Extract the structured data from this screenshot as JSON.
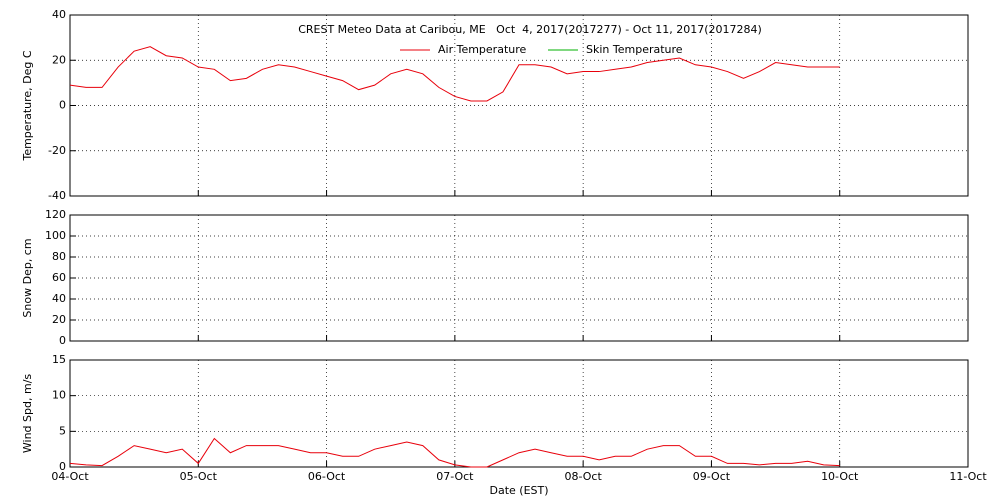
{
  "chart_data": [
    {
      "type": "line",
      "title": "CREST Meteo Data at Caribou, ME   Oct  4, 2017(2017277) - Oct 11, 2017(2017284)",
      "ylabel": "Temperature, Deg C",
      "x": [
        0,
        0.125,
        0.25,
        0.375,
        0.5,
        0.625,
        0.75,
        0.875,
        1,
        1.125,
        1.25,
        1.375,
        1.5,
        1.625,
        1.75,
        1.875,
        2,
        2.125,
        2.25,
        2.375,
        2.5,
        2.625,
        2.75,
        2.875,
        3,
        3.125,
        3.25,
        3.375,
        3.5,
        3.625,
        3.75,
        3.875,
        4,
        4.125,
        4.25,
        4.375,
        4.5,
        4.625,
        4.75,
        4.875,
        5,
        5.125,
        5.25,
        5.375,
        5.5,
        5.625,
        5.75,
        5.875,
        6
      ],
      "series": [
        {
          "name": "Air Temperature",
          "color": "#e8000b",
          "values": [
            9,
            8,
            8,
            17,
            24,
            26,
            22,
            21,
            17,
            16,
            11,
            12,
            16,
            18,
            17,
            15,
            13,
            11,
            7,
            9,
            14,
            16,
            14,
            8,
            4,
            2,
            2,
            6,
            18,
            18,
            17,
            14,
            15,
            15,
            16,
            17,
            19,
            20,
            21,
            18,
            17,
            15,
            12,
            15,
            19,
            18,
            17,
            17,
            17
          ]
        },
        {
          "name": "Skin Temperature",
          "color": "#00b000",
          "values": [
            null,
            null,
            null,
            null,
            null,
            null,
            null,
            null,
            null,
            null,
            null,
            null,
            null,
            null,
            null,
            null,
            null,
            null,
            null,
            null,
            null,
            null,
            null,
            null,
            null,
            null,
            null,
            null,
            null,
            null,
            null,
            null,
            null,
            null,
            null,
            null,
            null,
            null,
            null,
            null,
            null,
            null,
            null,
            null,
            null,
            null,
            null,
            null,
            null
          ]
        }
      ],
      "xlim": [
        0,
        7
      ],
      "xticks": [
        0,
        1,
        2,
        3,
        4,
        5,
        6,
        7
      ],
      "ylim": [
        -40,
        40
      ],
      "yticks": [
        -40,
        -20,
        0,
        20,
        40
      ],
      "grid": true,
      "legend": "top"
    },
    {
      "type": "line",
      "ylabel": "Snow Dep, cm",
      "xlim": [
        0,
        7
      ],
      "xticks": [
        0,
        1,
        2,
        3,
        4,
        5,
        6,
        7
      ],
      "ylim": [
        0,
        120
      ],
      "yticks": [
        0,
        20,
        40,
        60,
        80,
        100,
        120
      ],
      "grid": true
    },
    {
      "type": "line",
      "ylabel": "Wind Spd, m/s",
      "xlabel": "Date (EST)",
      "x": [
        0,
        0.125,
        0.25,
        0.375,
        0.5,
        0.625,
        0.75,
        0.875,
        1,
        1.125,
        1.25,
        1.375,
        1.5,
        1.625,
        1.75,
        1.875,
        2,
        2.125,
        2.25,
        2.375,
        2.5,
        2.625,
        2.75,
        2.875,
        3,
        3.125,
        3.25,
        3.375,
        3.5,
        3.625,
        3.75,
        3.875,
        4,
        4.125,
        4.25,
        4.375,
        4.5,
        4.625,
        4.75,
        4.875,
        5,
        5.125,
        5.25,
        5.375,
        5.5,
        5.625,
        5.75,
        5.875,
        6
      ],
      "series": [
        {
          "name": "Wind Speed",
          "color": "#e8000b",
          "values": [
            0.5,
            0.3,
            0.2,
            1.5,
            3,
            2.5,
            2,
            2.5,
            0.5,
            4,
            2,
            3,
            3,
            3,
            2.5,
            2,
            2,
            1.5,
            1.5,
            2.5,
            3,
            3.5,
            3,
            1,
            0.3,
            0,
            0,
            1,
            2,
            2.5,
            2,
            1.5,
            1.5,
            1,
            1.5,
            1.5,
            2.5,
            3,
            3,
            1.5,
            1.5,
            0.5,
            0.5,
            0.3,
            0.5,
            0.5,
            0.8,
            0.3,
            0.2
          ]
        }
      ],
      "xlim": [
        0,
        7
      ],
      "xticks": [
        {
          "value": 0,
          "label": "04-Oct"
        },
        {
          "value": 1,
          "label": "05-Oct"
        },
        {
          "value": 2,
          "label": "06-Oct"
        },
        {
          "value": 3,
          "label": "07-Oct"
        },
        {
          "value": 4,
          "label": "08-Oct"
        },
        {
          "value": 5,
          "label": "09-Oct"
        },
        {
          "value": 6,
          "label": "10-Oct"
        },
        {
          "value": 7,
          "label": "11-Oct"
        }
      ],
      "ylim": [
        0,
        15
      ],
      "yticks": [
        0,
        5,
        10,
        15
      ],
      "grid": true
    }
  ]
}
